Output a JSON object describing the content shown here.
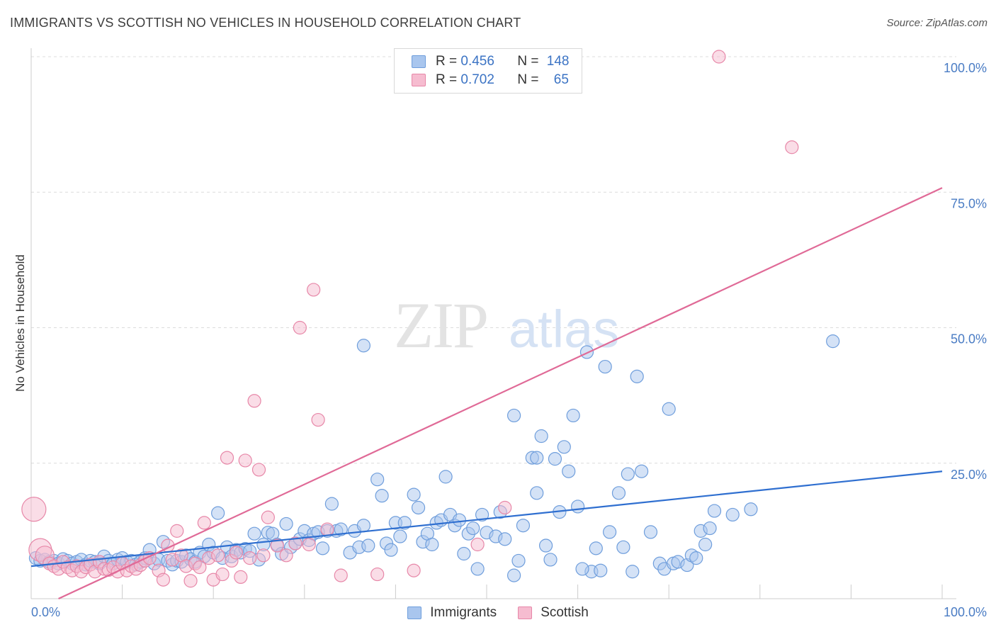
{
  "title": "IMMIGRANTS VS SCOTTISH NO VEHICLES IN HOUSEHOLD CORRELATION CHART",
  "source": "Source: ZipAtlas.com",
  "watermark": {
    "zip": "ZIP",
    "atlas": "atlas"
  },
  "legend_top": [
    {
      "r_label": "R = ",
      "r_value": "0.456",
      "n_label": "N = ",
      "n_value": "148",
      "color": "#a9c6ee",
      "border": "#6f9edc"
    },
    {
      "r_label": "R = ",
      "r_value": "0.702",
      "n_label": "N = ",
      "n_value": "65",
      "color": "#f6bcd0",
      "border": "#e787a8"
    }
  ],
  "legend_bottom": [
    {
      "label": "Immigrants",
      "color": "#a9c6ee",
      "border": "#6f9edc"
    },
    {
      "label": "Scottish",
      "color": "#f6bcd0",
      "border": "#e787a8"
    }
  ],
  "chart_data": {
    "type": "scatter",
    "xlabel": "",
    "ylabel": "No Vehicles in Household",
    "xlim": [
      0,
      100
    ],
    "ylim": [
      0,
      100
    ],
    "x_tick_labels": [
      "0.0%",
      "100.0%"
    ],
    "y_tick_labels": [
      "25.0%",
      "50.0%",
      "75.0%",
      "100.0%"
    ],
    "y_ticks": [
      25,
      50,
      75,
      100
    ],
    "grid": true,
    "series": [
      {
        "name": "Immigrants",
        "color": "#6f9edc",
        "fill": "#a9c6ee",
        "line_color": "#2f6fd0",
        "trend": [
          [
            0,
            6.0
          ],
          [
            100,
            23.5
          ]
        ],
        "points": [
          [
            0.5,
            7.5
          ],
          [
            1,
            7
          ],
          [
            1.5,
            7.2
          ],
          [
            2,
            6.8
          ],
          [
            2.5,
            7
          ],
          [
            3,
            6.5
          ],
          [
            3.5,
            7.3
          ],
          [
            4,
            7
          ],
          [
            4.5,
            6.5
          ],
          [
            5,
            6.8
          ],
          [
            5.5,
            7.2
          ],
          [
            6,
            6.3
          ],
          [
            6.5,
            7
          ],
          [
            7,
            6.8
          ],
          [
            7.5,
            6.5
          ],
          [
            8,
            7.8
          ],
          [
            8.5,
            7
          ],
          [
            9,
            6.5
          ],
          [
            9.5,
            7.2
          ],
          [
            10,
            7.5
          ],
          [
            10.5,
            6.8
          ],
          [
            11,
            7
          ],
          [
            11.5,
            6.3
          ],
          [
            12,
            6.8
          ],
          [
            12.5,
            7.5
          ],
          [
            13,
            9
          ],
          [
            13.5,
            6.5
          ],
          [
            14,
            7.2
          ],
          [
            14.5,
            10.5
          ],
          [
            15,
            7
          ],
          [
            15.5,
            6.3
          ],
          [
            16,
            7
          ],
          [
            16.5,
            6.8
          ],
          [
            17,
            8
          ],
          [
            17.5,
            7.3
          ],
          [
            18,
            6.8
          ],
          [
            18.5,
            8.5
          ],
          [
            19,
            7.8
          ],
          [
            19.5,
            10
          ],
          [
            20,
            8.5
          ],
          [
            20.5,
            15.8
          ],
          [
            21,
            7.5
          ],
          [
            21.5,
            9.5
          ],
          [
            22,
            7.8
          ],
          [
            22.5,
            9
          ],
          [
            23,
            8.5
          ],
          [
            23.5,
            9.2
          ],
          [
            24,
            8.8
          ],
          [
            24.5,
            12
          ],
          [
            25,
            7.2
          ],
          [
            25.5,
            10
          ],
          [
            26,
            12.2
          ],
          [
            26.5,
            12
          ],
          [
            27,
            10
          ],
          [
            27.5,
            8.3
          ],
          [
            28,
            13.8
          ],
          [
            28.5,
            9.5
          ],
          [
            29,
            10.2
          ],
          [
            29.5,
            11
          ],
          [
            30,
            12.5
          ],
          [
            30.5,
            10.8
          ],
          [
            31,
            12
          ],
          [
            31.5,
            12.3
          ],
          [
            32,
            9.3
          ],
          [
            32.5,
            12.5
          ],
          [
            33,
            17.5
          ],
          [
            33.5,
            12.5
          ],
          [
            34,
            12.8
          ],
          [
            35,
            8.5
          ],
          [
            35.5,
            12.5
          ],
          [
            36,
            9.5
          ],
          [
            36.5,
            13.5
          ],
          [
            37,
            9.8
          ],
          [
            38,
            22
          ],
          [
            38.5,
            19
          ],
          [
            39,
            10.2
          ],
          [
            39.5,
            9
          ],
          [
            40,
            14
          ],
          [
            40.5,
            11.5
          ],
          [
            41,
            14
          ],
          [
            42,
            19.2
          ],
          [
            42.5,
            16.8
          ],
          [
            43,
            10.5
          ],
          [
            43.5,
            12
          ],
          [
            44,
            10
          ],
          [
            44.5,
            14
          ],
          [
            45,
            14.5
          ],
          [
            45.5,
            22.5
          ],
          [
            46,
            15.5
          ],
          [
            46.5,
            13.5
          ],
          [
            47,
            14.5
          ],
          [
            47.5,
            8.3
          ],
          [
            48,
            12
          ],
          [
            48.5,
            13
          ],
          [
            49,
            5.5
          ],
          [
            49.5,
            15.5
          ],
          [
            50,
            12.2
          ],
          [
            51,
            11.5
          ],
          [
            51.5,
            16
          ],
          [
            52,
            11
          ],
          [
            53,
            4.3
          ],
          [
            53.5,
            7
          ],
          [
            54,
            13.5
          ],
          [
            55,
            26
          ],
          [
            55.5,
            19.5
          ],
          [
            56,
            30
          ],
          [
            56.5,
            9.8
          ],
          [
            57,
            7.2
          ],
          [
            57.5,
            25.8
          ],
          [
            58,
            16
          ],
          [
            58.5,
            28
          ],
          [
            59,
            23.5
          ],
          [
            59.5,
            33.8
          ],
          [
            60,
            17
          ],
          [
            61,
            45.5
          ],
          [
            61.5,
            5
          ],
          [
            62,
            9.3
          ],
          [
            62.5,
            5.2
          ],
          [
            63,
            42.8
          ],
          [
            63.5,
            12.3
          ],
          [
            64.5,
            19.5
          ],
          [
            65,
            9.5
          ],
          [
            65.5,
            23
          ],
          [
            66,
            5
          ],
          [
            66.5,
            41
          ],
          [
            67,
            23.5
          ],
          [
            68,
            12.3
          ],
          [
            69,
            6.5
          ],
          [
            69.5,
            5.5
          ],
          [
            70,
            35
          ],
          [
            70.5,
            6.5
          ],
          [
            71,
            6.8
          ],
          [
            72,
            6.2
          ],
          [
            72.5,
            8
          ],
          [
            73,
            7.5
          ],
          [
            73.5,
            12.5
          ],
          [
            74,
            10
          ],
          [
            74.5,
            13
          ],
          [
            75,
            16.2
          ],
          [
            77,
            15.5
          ],
          [
            79,
            16.5
          ],
          [
            88,
            47.5
          ],
          [
            36.5,
            46.7
          ],
          [
            53,
            33.8
          ],
          [
            55.5,
            26
          ],
          [
            60.5,
            5.5
          ]
        ]
      },
      {
        "name": "Scottish",
        "color": "#e787a8",
        "fill": "#f6bcd0",
        "line_color": "#e06a97",
        "trend": [
          [
            3,
            0
          ],
          [
            100,
            75.8
          ]
        ],
        "points": [
          [
            0.3,
            16.5
          ],
          [
            1,
            9
          ],
          [
            1.5,
            8
          ],
          [
            2,
            6.5
          ],
          [
            2.5,
            6
          ],
          [
            3,
            5.5
          ],
          [
            3.5,
            6.8
          ],
          [
            4,
            5.8
          ],
          [
            4.5,
            5.2
          ],
          [
            5,
            6
          ],
          [
            5.5,
            5
          ],
          [
            6,
            5.8
          ],
          [
            6.5,
            6.3
          ],
          [
            7,
            5
          ],
          [
            7.5,
            6.8
          ],
          [
            8,
            5.5
          ],
          [
            8.5,
            5.3
          ],
          [
            9,
            5.8
          ],
          [
            9.5,
            5
          ],
          [
            10,
            6.5
          ],
          [
            10.5,
            5.2
          ],
          [
            11,
            6
          ],
          [
            11.5,
            5.5
          ],
          [
            12,
            6.2
          ],
          [
            12.5,
            7
          ],
          [
            13,
            7.5
          ],
          [
            14,
            5.2
          ],
          [
            14.5,
            3.5
          ],
          [
            15,
            9.8
          ],
          [
            15.5,
            7.2
          ],
          [
            16,
            12.5
          ],
          [
            16.5,
            8
          ],
          [
            17,
            6
          ],
          [
            17.5,
            3.3
          ],
          [
            18,
            6.5
          ],
          [
            18.5,
            5.8
          ],
          [
            19,
            14
          ],
          [
            19.5,
            7.5
          ],
          [
            20,
            3.5
          ],
          [
            20.5,
            8
          ],
          [
            21,
            4.5
          ],
          [
            21.5,
            26
          ],
          [
            22,
            7
          ],
          [
            22.5,
            8.5
          ],
          [
            23,
            4
          ],
          [
            23.5,
            25.5
          ],
          [
            24,
            7.5
          ],
          [
            24.5,
            36.5
          ],
          [
            25,
            23.8
          ],
          [
            25.5,
            8
          ],
          [
            26,
            15
          ],
          [
            27,
            9.8
          ],
          [
            28,
            8
          ],
          [
            29,
            10.2
          ],
          [
            29.5,
            50
          ],
          [
            30.5,
            10
          ],
          [
            31,
            57
          ],
          [
            31.5,
            33
          ],
          [
            32.5,
            12.8
          ],
          [
            34,
            4.3
          ],
          [
            38,
            4.5
          ],
          [
            42,
            5.2
          ],
          [
            49,
            10
          ],
          [
            52,
            16.8
          ],
          [
            75.5,
            100
          ],
          [
            83.5,
            83.3
          ]
        ]
      }
    ]
  }
}
